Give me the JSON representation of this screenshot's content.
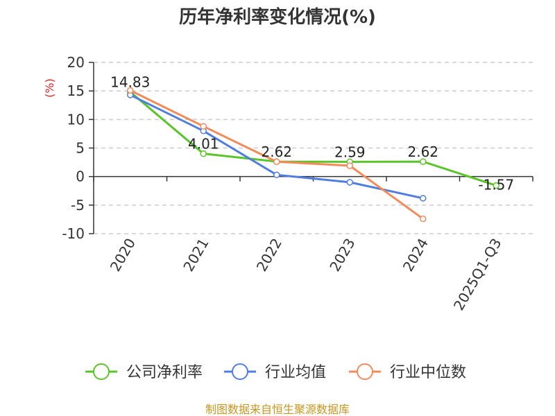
{
  "chart_data": {
    "type": "line",
    "title": "历年净利率变化情况(%)",
    "ylabel": "(%)",
    "xlabel": "",
    "categories": [
      "2020",
      "2021",
      "2022",
      "2023",
      "2024",
      "2025Q1-Q3"
    ],
    "ylim": [
      -10,
      20
    ],
    "yticks": [
      "20",
      "15",
      "10",
      "5",
      "0",
      "-5",
      "-10"
    ],
    "grid": true,
    "legend_position": "bottom",
    "series": [
      {
        "name": "公司净利率",
        "values": [
          14.83,
          4.01,
          2.62,
          2.59,
          2.62,
          -1.57
        ],
        "labels": [
          "14.83",
          "4.01",
          "2.62",
          "2.59",
          "2.62",
          "-1.57"
        ],
        "color": "#5bc42a"
      },
      {
        "name": "行业均值",
        "values": [
          14.3,
          8.0,
          0.3,
          -1.0,
          -3.8,
          null
        ],
        "color": "#4f7de0"
      },
      {
        "name": "行业中位数",
        "values": [
          15.1,
          8.8,
          2.6,
          1.9,
          -7.4,
          null
        ],
        "color": "#f28a5a"
      }
    ]
  },
  "source_text": "制图数据来自恒生聚源数据库",
  "colors": {
    "ylabel": "#e02020",
    "source": "#c8961e",
    "grid": "#cccccc",
    "axis": "#333333"
  }
}
